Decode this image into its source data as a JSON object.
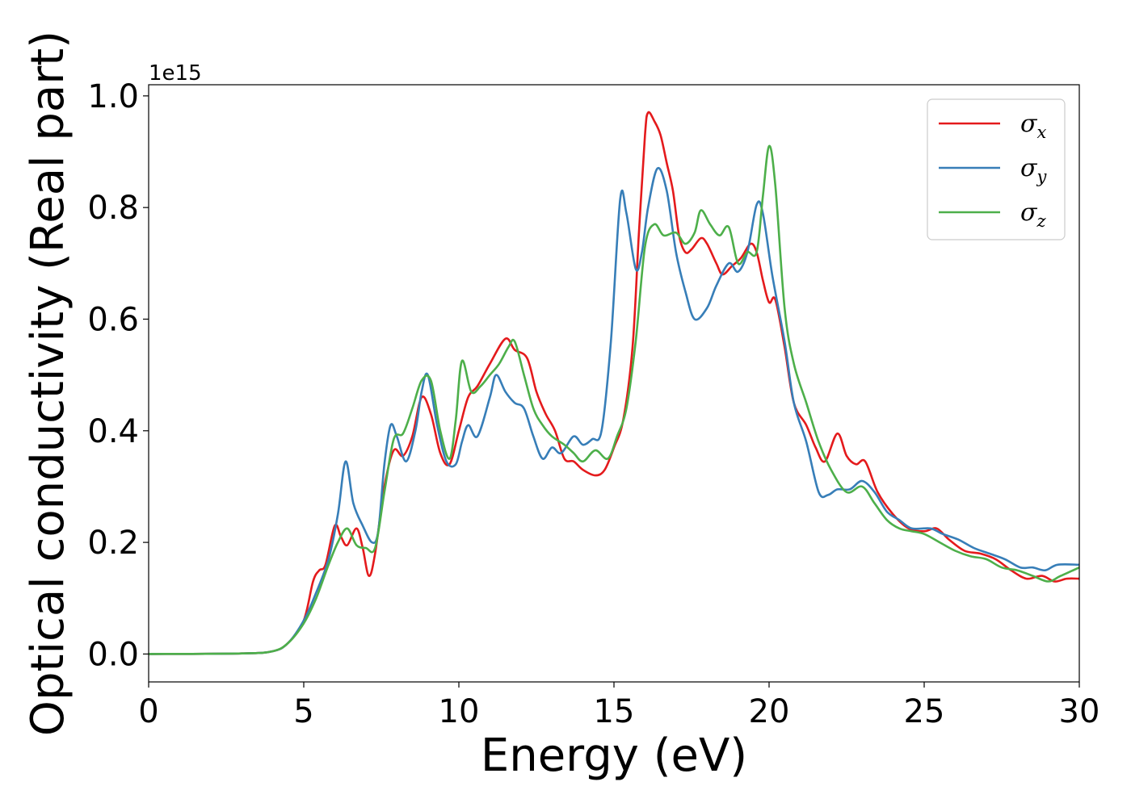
{
  "chart_data": {
    "type": "line",
    "title": "",
    "xlabel": "Energy (eV)",
    "ylabel": "Optical conductivity (Real part)",
    "y_offset_label": "1e15",
    "xlim": [
      0,
      30
    ],
    "ylim": [
      -0.05,
      1.02
    ],
    "xticks": [
      0,
      5,
      10,
      15,
      20,
      25,
      30
    ],
    "xtick_labels": [
      "0",
      "5",
      "10",
      "15",
      "20",
      "25",
      "30"
    ],
    "yticks": [
      0.0,
      0.2,
      0.4,
      0.6,
      0.8,
      1.0
    ],
    "ytick_labels": [
      "0.0",
      "0.2",
      "0.4",
      "0.6",
      "0.8",
      "1.0"
    ],
    "grid": false,
    "legend_position": "top-right",
    "series": [
      {
        "name": "σ",
        "subscript": "x",
        "color": "#e41a1c",
        "points": [
          [
            0,
            0
          ],
          [
            3,
            0.001
          ],
          [
            4,
            0.005
          ],
          [
            4.5,
            0.02
          ],
          [
            5,
            0.06
          ],
          [
            5.3,
            0.13
          ],
          [
            5.5,
            0.15
          ],
          [
            5.7,
            0.16
          ],
          [
            6,
            0.23
          ],
          [
            6.2,
            0.21
          ],
          [
            6.4,
            0.195
          ],
          [
            6.7,
            0.225
          ],
          [
            6.9,
            0.19
          ],
          [
            7.1,
            0.14
          ],
          [
            7.3,
            0.18
          ],
          [
            7.6,
            0.3
          ],
          [
            7.9,
            0.365
          ],
          [
            8.2,
            0.355
          ],
          [
            8.5,
            0.39
          ],
          [
            8.8,
            0.46
          ],
          [
            9.1,
            0.43
          ],
          [
            9.4,
            0.36
          ],
          [
            9.7,
            0.34
          ],
          [
            10,
            0.4
          ],
          [
            10.3,
            0.46
          ],
          [
            10.6,
            0.48
          ],
          [
            11,
            0.52
          ],
          [
            11.5,
            0.565
          ],
          [
            11.8,
            0.545
          ],
          [
            12.2,
            0.53
          ],
          [
            12.5,
            0.47
          ],
          [
            12.8,
            0.43
          ],
          [
            13.1,
            0.4
          ],
          [
            13.4,
            0.35
          ],
          [
            13.7,
            0.345
          ],
          [
            14,
            0.33
          ],
          [
            14.4,
            0.32
          ],
          [
            14.7,
            0.33
          ],
          [
            15,
            0.37
          ],
          [
            15.3,
            0.42
          ],
          [
            15.6,
            0.55
          ],
          [
            15.8,
            0.75
          ],
          [
            16,
            0.93
          ],
          [
            16.1,
            0.97
          ],
          [
            16.3,
            0.955
          ],
          [
            16.5,
            0.93
          ],
          [
            16.7,
            0.88
          ],
          [
            16.9,
            0.83
          ],
          [
            17.1,
            0.75
          ],
          [
            17.3,
            0.72
          ],
          [
            17.5,
            0.725
          ],
          [
            17.8,
            0.745
          ],
          [
            18,
            0.735
          ],
          [
            18.3,
            0.7
          ],
          [
            18.5,
            0.68
          ],
          [
            18.8,
            0.695
          ],
          [
            19.1,
            0.71
          ],
          [
            19.4,
            0.735
          ],
          [
            19.6,
            0.72
          ],
          [
            19.8,
            0.67
          ],
          [
            20,
            0.63
          ],
          [
            20.2,
            0.635
          ],
          [
            20.5,
            0.55
          ],
          [
            20.8,
            0.45
          ],
          [
            21.2,
            0.41
          ],
          [
            21.5,
            0.37
          ],
          [
            21.8,
            0.345
          ],
          [
            22.2,
            0.395
          ],
          [
            22.5,
            0.355
          ],
          [
            22.8,
            0.34
          ],
          [
            23.1,
            0.345
          ],
          [
            23.5,
            0.29
          ],
          [
            24,
            0.25
          ],
          [
            24.5,
            0.225
          ],
          [
            25,
            0.22
          ],
          [
            25.4,
            0.225
          ],
          [
            25.8,
            0.205
          ],
          [
            26.3,
            0.185
          ],
          [
            26.8,
            0.18
          ],
          [
            27.3,
            0.17
          ],
          [
            27.8,
            0.15
          ],
          [
            28.3,
            0.135
          ],
          [
            28.8,
            0.14
          ],
          [
            29.2,
            0.13
          ],
          [
            29.6,
            0.135
          ],
          [
            30,
            0.135
          ]
        ]
      },
      {
        "name": "σ",
        "subscript": "y",
        "color": "#377eb8",
        "points": [
          [
            0,
            0
          ],
          [
            3,
            0.001
          ],
          [
            4,
            0.005
          ],
          [
            4.5,
            0.02
          ],
          [
            5,
            0.06
          ],
          [
            5.4,
            0.11
          ],
          [
            5.8,
            0.17
          ],
          [
            6.1,
            0.25
          ],
          [
            6.35,
            0.345
          ],
          [
            6.6,
            0.27
          ],
          [
            6.9,
            0.23
          ],
          [
            7.2,
            0.2
          ],
          [
            7.4,
            0.22
          ],
          [
            7.6,
            0.34
          ],
          [
            7.8,
            0.41
          ],
          [
            8,
            0.39
          ],
          [
            8.3,
            0.345
          ],
          [
            8.6,
            0.4
          ],
          [
            8.8,
            0.47
          ],
          [
            9,
            0.5
          ],
          [
            9.3,
            0.41
          ],
          [
            9.6,
            0.345
          ],
          [
            9.9,
            0.34
          ],
          [
            10.1,
            0.38
          ],
          [
            10.3,
            0.41
          ],
          [
            10.6,
            0.39
          ],
          [
            11,
            0.46
          ],
          [
            11.2,
            0.5
          ],
          [
            11.5,
            0.47
          ],
          [
            11.8,
            0.45
          ],
          [
            12.1,
            0.44
          ],
          [
            12.4,
            0.39
          ],
          [
            12.7,
            0.35
          ],
          [
            13,
            0.37
          ],
          [
            13.3,
            0.36
          ],
          [
            13.7,
            0.39
          ],
          [
            14,
            0.375
          ],
          [
            14.3,
            0.385
          ],
          [
            14.6,
            0.4
          ],
          [
            14.9,
            0.56
          ],
          [
            15.2,
            0.815
          ],
          [
            15.4,
            0.79
          ],
          [
            15.7,
            0.69
          ],
          [
            15.9,
            0.72
          ],
          [
            16.1,
            0.8
          ],
          [
            16.4,
            0.87
          ],
          [
            16.7,
            0.83
          ],
          [
            17,
            0.72
          ],
          [
            17.3,
            0.65
          ],
          [
            17.6,
            0.6
          ],
          [
            18,
            0.62
          ],
          [
            18.3,
            0.66
          ],
          [
            18.7,
            0.7
          ],
          [
            19,
            0.685
          ],
          [
            19.3,
            0.72
          ],
          [
            19.6,
            0.805
          ],
          [
            19.8,
            0.79
          ],
          [
            20.1,
            0.68
          ],
          [
            20.5,
            0.56
          ],
          [
            20.8,
            0.45
          ],
          [
            21.2,
            0.38
          ],
          [
            21.6,
            0.29
          ],
          [
            21.9,
            0.285
          ],
          [
            22.2,
            0.295
          ],
          [
            22.6,
            0.295
          ],
          [
            23,
            0.31
          ],
          [
            23.4,
            0.29
          ],
          [
            23.8,
            0.255
          ],
          [
            24.2,
            0.24
          ],
          [
            24.6,
            0.225
          ],
          [
            25.2,
            0.225
          ],
          [
            25.6,
            0.215
          ],
          [
            26.1,
            0.205
          ],
          [
            26.6,
            0.19
          ],
          [
            27.1,
            0.18
          ],
          [
            27.6,
            0.17
          ],
          [
            28.1,
            0.155
          ],
          [
            28.5,
            0.155
          ],
          [
            28.9,
            0.15
          ],
          [
            29.3,
            0.16
          ],
          [
            30,
            0.16
          ]
        ]
      },
      {
        "name": "σ",
        "subscript": "z",
        "color": "#4daf4a",
        "points": [
          [
            0,
            0
          ],
          [
            3,
            0.001
          ],
          [
            4,
            0.005
          ],
          [
            4.5,
            0.02
          ],
          [
            5,
            0.055
          ],
          [
            5.4,
            0.1
          ],
          [
            5.8,
            0.16
          ],
          [
            6.1,
            0.2
          ],
          [
            6.4,
            0.225
          ],
          [
            6.7,
            0.195
          ],
          [
            7,
            0.19
          ],
          [
            7.3,
            0.19
          ],
          [
            7.6,
            0.29
          ],
          [
            7.9,
            0.385
          ],
          [
            8.2,
            0.395
          ],
          [
            8.5,
            0.44
          ],
          [
            8.8,
            0.49
          ],
          [
            9.1,
            0.49
          ],
          [
            9.4,
            0.4
          ],
          [
            9.7,
            0.35
          ],
          [
            9.9,
            0.42
          ],
          [
            10.1,
            0.525
          ],
          [
            10.4,
            0.47
          ],
          [
            10.7,
            0.48
          ],
          [
            11,
            0.5
          ],
          [
            11.3,
            0.52
          ],
          [
            11.6,
            0.55
          ],
          [
            11.8,
            0.56
          ],
          [
            12.1,
            0.5
          ],
          [
            12.4,
            0.44
          ],
          [
            12.7,
            0.41
          ],
          [
            13,
            0.39
          ],
          [
            13.4,
            0.375
          ],
          [
            13.7,
            0.36
          ],
          [
            14,
            0.345
          ],
          [
            14.4,
            0.365
          ],
          [
            14.8,
            0.35
          ],
          [
            15.1,
            0.39
          ],
          [
            15.4,
            0.44
          ],
          [
            15.7,
            0.56
          ],
          [
            16,
            0.73
          ],
          [
            16.3,
            0.77
          ],
          [
            16.6,
            0.75
          ],
          [
            17,
            0.755
          ],
          [
            17.3,
            0.735
          ],
          [
            17.6,
            0.755
          ],
          [
            17.8,
            0.795
          ],
          [
            18.1,
            0.77
          ],
          [
            18.4,
            0.75
          ],
          [
            18.7,
            0.765
          ],
          [
            19,
            0.7
          ],
          [
            19.3,
            0.72
          ],
          [
            19.6,
            0.72
          ],
          [
            19.8,
            0.82
          ],
          [
            20,
            0.91
          ],
          [
            20.2,
            0.84
          ],
          [
            20.5,
            0.62
          ],
          [
            20.8,
            0.52
          ],
          [
            21.2,
            0.45
          ],
          [
            21.6,
            0.38
          ],
          [
            22,
            0.33
          ],
          [
            22.5,
            0.29
          ],
          [
            23,
            0.3
          ],
          [
            23.4,
            0.27
          ],
          [
            23.8,
            0.24
          ],
          [
            24.2,
            0.225
          ],
          [
            24.6,
            0.22
          ],
          [
            25,
            0.215
          ],
          [
            25.5,
            0.2
          ],
          [
            26,
            0.185
          ],
          [
            26.5,
            0.175
          ],
          [
            27,
            0.17
          ],
          [
            27.5,
            0.155
          ],
          [
            28,
            0.15
          ],
          [
            28.5,
            0.14
          ],
          [
            29,
            0.13
          ],
          [
            29.4,
            0.14
          ],
          [
            30,
            0.155
          ]
        ]
      }
    ]
  }
}
